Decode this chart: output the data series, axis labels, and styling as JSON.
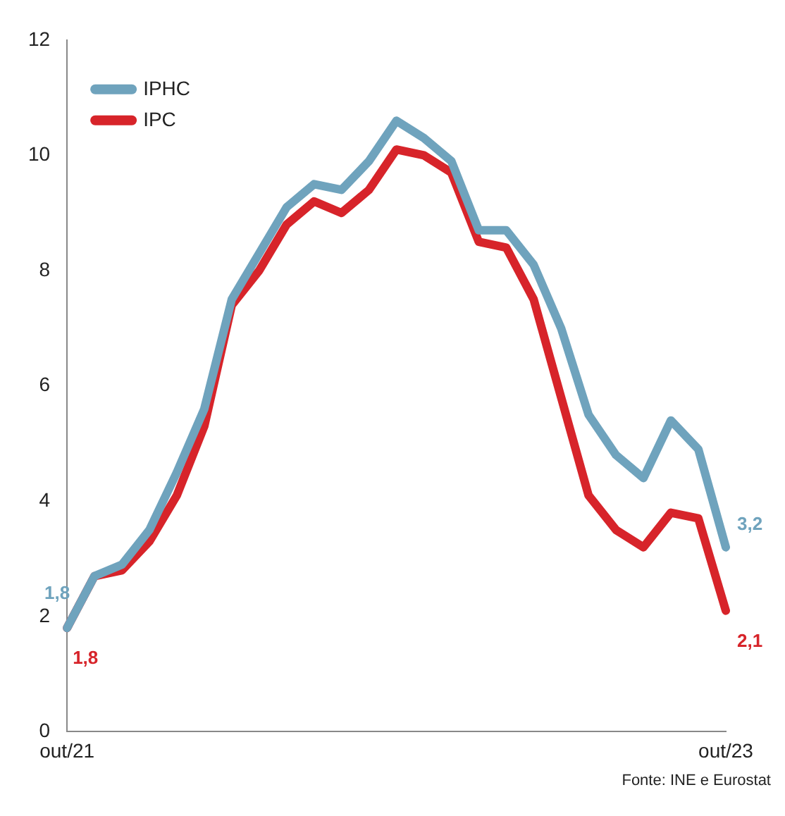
{
  "chart_data": {
    "type": "line",
    "categories": [
      "out/21",
      null,
      null,
      null,
      null,
      null,
      null,
      null,
      null,
      null,
      null,
      null,
      null,
      null,
      null,
      null,
      null,
      null,
      null,
      null,
      null,
      null,
      null,
      null,
      "out/23"
    ],
    "series": [
      {
        "name": "IPHC",
        "color": "#6fa3bd",
        "values": [
          1.8,
          2.7,
          2.9,
          3.5,
          4.5,
          5.6,
          7.5,
          8.3,
          9.1,
          9.5,
          9.4,
          9.9,
          10.6,
          10.3,
          9.9,
          8.7,
          8.7,
          8.1,
          7.0,
          5.5,
          4.8,
          4.4,
          5.4,
          4.9,
          3.2
        ],
        "value_labels": [
          "1,8",
          null,
          null,
          null,
          null,
          null,
          null,
          null,
          null,
          null,
          null,
          null,
          null,
          null,
          null,
          null,
          null,
          null,
          null,
          null,
          null,
          null,
          null,
          null,
          "3,2"
        ]
      },
      {
        "name": "IPC",
        "color": "#d7242a",
        "values": [
          1.8,
          2.7,
          2.8,
          3.3,
          4.1,
          5.3,
          7.4,
          8.0,
          8.8,
          9.2,
          9.0,
          9.4,
          10.1,
          10.0,
          9.7,
          8.5,
          8.4,
          7.5,
          5.8,
          4.1,
          3.5,
          3.2,
          3.8,
          3.7,
          2.1
        ],
        "value_labels": [
          "1,8",
          null,
          null,
          null,
          null,
          null,
          null,
          null,
          null,
          null,
          null,
          null,
          null,
          null,
          null,
          null,
          null,
          null,
          null,
          null,
          null,
          null,
          null,
          null,
          "2,1"
        ]
      }
    ],
    "ylim": [
      0,
      12
    ],
    "yticks": [
      0,
      2,
      4,
      6,
      8,
      10,
      12
    ],
    "grid": false,
    "legend": "top left",
    "marker": "none",
    "line_style": "solid",
    "annotations": [
      "Fonte: INE e Eurostat"
    ]
  }
}
